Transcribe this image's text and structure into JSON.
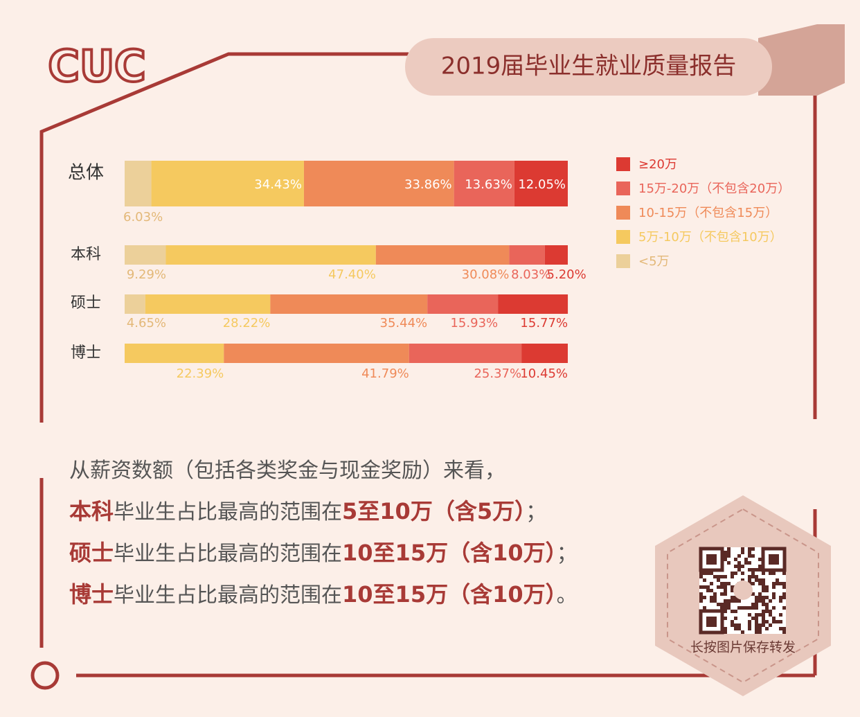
{
  "header": {
    "logo": "CUC",
    "title": "2019届毕业生就业质量报告"
  },
  "chart_data": {
    "type": "stacked-bar-horizontal",
    "categories": [
      "总体",
      "本科",
      "硕士",
      "博士"
    ],
    "xlim": [
      0,
      100
    ],
    "series": [
      {
        "name": "<5万",
        "color": "#ecd09a",
        "values": [
          6.03,
          9.29,
          4.65,
          null
        ],
        "value_labels": [
          "6.03%",
          "9.29%",
          "4.65%",
          null
        ]
      },
      {
        "name": "5万-10万（不包含10万）",
        "color": "#f5c95f",
        "values": [
          34.43,
          47.4,
          28.22,
          22.39
        ],
        "value_labels": [
          "34.43%",
          "47.40%",
          "28.22%",
          "22.39%"
        ]
      },
      {
        "name": "10-15万（不包含15万）",
        "color": "#ef8a58",
        "values": [
          33.86,
          30.08,
          35.44,
          41.79
        ],
        "value_labels": [
          "33.86%",
          "30.08%",
          "35.44%",
          "41.79%"
        ]
      },
      {
        "name": "15万-20万（不包含20万）",
        "color": "#e9655a",
        "values": [
          13.63,
          8.03,
          15.93,
          25.37
        ],
        "value_labels": [
          "13.63%",
          "8.03%",
          "15.93%",
          "25.37%"
        ]
      },
      {
        "name": "≥20万",
        "color": "#dc3a32",
        "values": [
          12.05,
          5.2,
          15.77,
          10.45
        ],
        "value_labels": [
          "12.05%",
          "5.20%",
          "15.77%",
          "10.45%"
        ]
      }
    ]
  },
  "text": {
    "intro": "从薪资数额（包括各类奖金与现金奖励）来看，",
    "notes": [
      {
        "lead": "本科",
        "body": "毕业生占比最高的范围在",
        "range": "5至10万（含5万）",
        "end": "；"
      },
      {
        "lead": "硕士",
        "body": "毕业生占比最高的范围在",
        "range": "10至15万（含10万）",
        "end": "；"
      },
      {
        "lead": "博士",
        "body": "毕业生占比最高的范围在",
        "range": "10至15万（含10万）",
        "end": "。"
      }
    ]
  },
  "qr": {
    "caption": "长按图片保存转发"
  }
}
